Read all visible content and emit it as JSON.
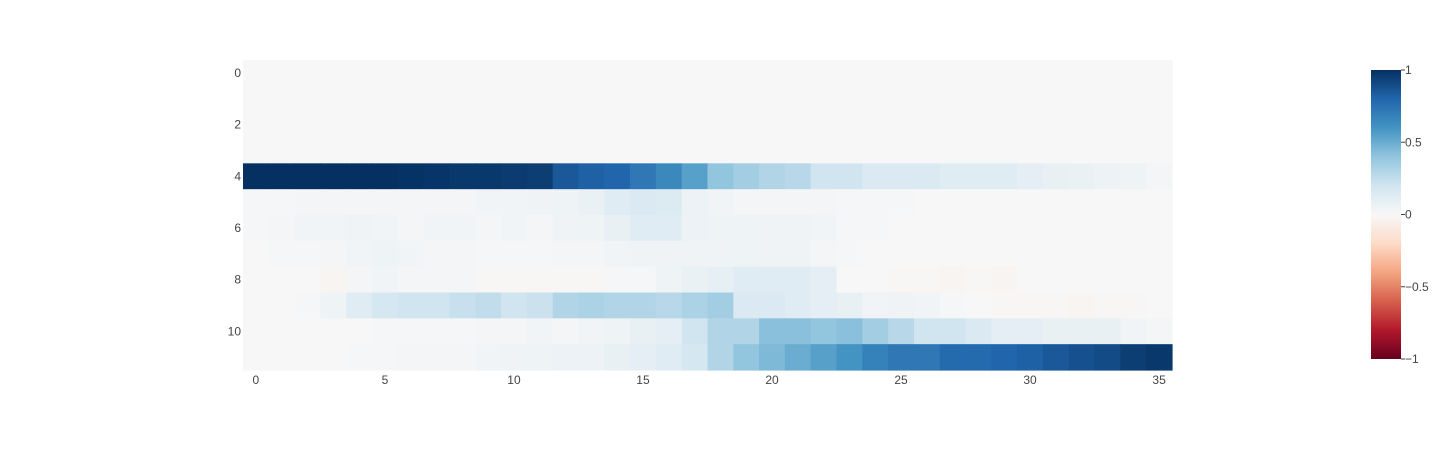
{
  "chart_data": {
    "type": "heatmap",
    "title": "",
    "xlabel": "",
    "ylabel": "",
    "x_range": [
      -0.5,
      35.5
    ],
    "y_range": [
      -0.5,
      11.5
    ],
    "y_reversed": true,
    "x_ticks": [
      0,
      5,
      10,
      15,
      20,
      25,
      30,
      35
    ],
    "y_ticks": [
      0,
      2,
      4,
      6,
      8,
      10
    ],
    "z_range": [
      -1,
      1
    ],
    "colorscale": "RdBu",
    "colorbar_ticks": [
      1,
      0.5,
      0,
      -0.5,
      -1
    ],
    "colorbar_tick_labels": [
      "1",
      "0.5",
      "0",
      "−0.5",
      "−1"
    ],
    "z": [
      [
        0,
        0,
        0,
        0,
        0,
        0,
        0,
        0,
        0,
        0,
        0,
        0,
        0,
        0,
        0,
        0,
        0,
        0,
        0,
        0,
        0,
        0,
        0,
        0,
        0,
        0,
        0,
        0,
        0,
        0,
        0,
        0,
        0,
        0,
        0,
        0
      ],
      [
        0,
        0,
        0,
        0,
        0,
        0,
        0,
        0,
        0,
        0,
        0,
        0,
        0,
        0,
        0,
        0,
        0,
        0,
        0,
        0,
        0,
        0,
        0,
        0,
        0,
        0,
        0,
        0,
        0,
        0,
        0,
        0,
        0,
        0,
        0,
        0
      ],
      [
        0,
        0,
        0,
        0,
        0,
        0,
        0,
        0,
        0,
        0,
        0,
        0,
        0,
        0,
        0,
        0,
        0,
        0,
        0,
        0,
        0,
        0,
        0,
        0,
        0,
        0,
        0,
        0,
        0,
        0,
        0,
        0,
        0,
        0,
        0,
        0
      ],
      [
        0,
        0,
        0,
        0,
        0,
        0,
        0,
        0,
        0,
        0,
        0,
        0,
        0,
        0,
        0,
        0,
        0,
        0,
        0,
        0,
        0,
        0,
        0,
        0,
        0,
        0,
        0,
        0,
        0,
        0,
        0,
        0,
        0,
        0,
        0,
        0
      ],
      [
        1,
        1,
        1,
        1,
        1,
        1,
        0.99,
        0.98,
        0.97,
        0.97,
        0.96,
        0.95,
        0.85,
        0.82,
        0.8,
        0.72,
        0.65,
        0.55,
        0.4,
        0.35,
        0.3,
        0.28,
        0.2,
        0.2,
        0.15,
        0.15,
        0.15,
        0.12,
        0.12,
        0.12,
        0.1,
        0.08,
        0.07,
        0.06,
        0.05,
        0.02
      ],
      [
        0.01,
        0.01,
        0.02,
        0.02,
        0.02,
        0.02,
        0.02,
        0.02,
        0.02,
        0.03,
        0.03,
        0.04,
        0.05,
        0.07,
        0.12,
        0.15,
        0.14,
        0.06,
        0.03,
        0.02,
        0.02,
        0.02,
        0.02,
        0.01,
        0.01,
        0.01,
        0,
        0,
        0,
        0,
        0,
        0,
        0,
        0,
        0,
        0
      ],
      [
        0.01,
        0.02,
        0.03,
        0.03,
        0.04,
        0.03,
        0.02,
        0.03,
        0.03,
        0.02,
        0.03,
        0.02,
        0.04,
        0.05,
        0.08,
        0.12,
        0.12,
        0.06,
        0.05,
        0.05,
        0.04,
        0.04,
        0.03,
        0.01,
        0.01,
        0,
        0,
        0,
        0,
        0,
        0,
        0,
        0,
        0,
        0,
        0
      ],
      [
        0,
        0.01,
        0.01,
        0.02,
        0.03,
        0.05,
        0.03,
        0.02,
        0.02,
        0.01,
        0.01,
        0.01,
        0.02,
        0.02,
        0.03,
        0.04,
        0.04,
        0.04,
        0.04,
        0.05,
        0.04,
        0.04,
        0.02,
        0.01,
        0,
        0,
        0,
        0,
        0,
        0,
        0,
        0,
        0,
        0,
        0,
        0
      ],
      [
        0,
        0,
        0,
        -0.02,
        0.02,
        0.03,
        0.02,
        0.02,
        0.02,
        -0.01,
        -0.01,
        -0.01,
        -0.01,
        -0.01,
        0.01,
        0.01,
        0.05,
        0.07,
        0.09,
        0.12,
        0.12,
        0.12,
        0.1,
        0,
        0,
        -0.01,
        -0.01,
        -0.02,
        -0.01,
        -0.02,
        0,
        0,
        0,
        0,
        0,
        0
      ],
      [
        0,
        0,
        0.01,
        0.05,
        0.12,
        0.18,
        0.2,
        0.2,
        0.23,
        0.25,
        0.2,
        0.22,
        0.3,
        0.32,
        0.3,
        0.3,
        0.28,
        0.32,
        0.35,
        0.15,
        0.15,
        0.12,
        0.1,
        0.08,
        0.03,
        0.04,
        0.03,
        0.01,
        0,
        -0.01,
        -0.01,
        -0.01,
        -0.02,
        -0.01,
        -0.01,
        0
      ],
      [
        0,
        0,
        0,
        0,
        0,
        0.01,
        0.01,
        0.01,
        0.01,
        0.02,
        0.02,
        0.03,
        0.02,
        0.03,
        0.05,
        0.08,
        0.1,
        0.2,
        0.3,
        0.3,
        0.42,
        0.42,
        0.4,
        0.42,
        0.35,
        0.28,
        0.2,
        0.2,
        0.15,
        0.1,
        0.1,
        0.08,
        0.08,
        0.08,
        0.03,
        0.02
      ],
      [
        0,
        0,
        0,
        0,
        0.01,
        0.01,
        0.02,
        0.02,
        0.02,
        0.03,
        0.04,
        0.05,
        0.06,
        0.06,
        0.08,
        0.1,
        0.12,
        0.18,
        0.3,
        0.4,
        0.45,
        0.5,
        0.55,
        0.6,
        0.68,
        0.72,
        0.72,
        0.78,
        0.78,
        0.8,
        0.82,
        0.85,
        0.88,
        0.9,
        0.95,
        0.97
      ]
    ]
  }
}
